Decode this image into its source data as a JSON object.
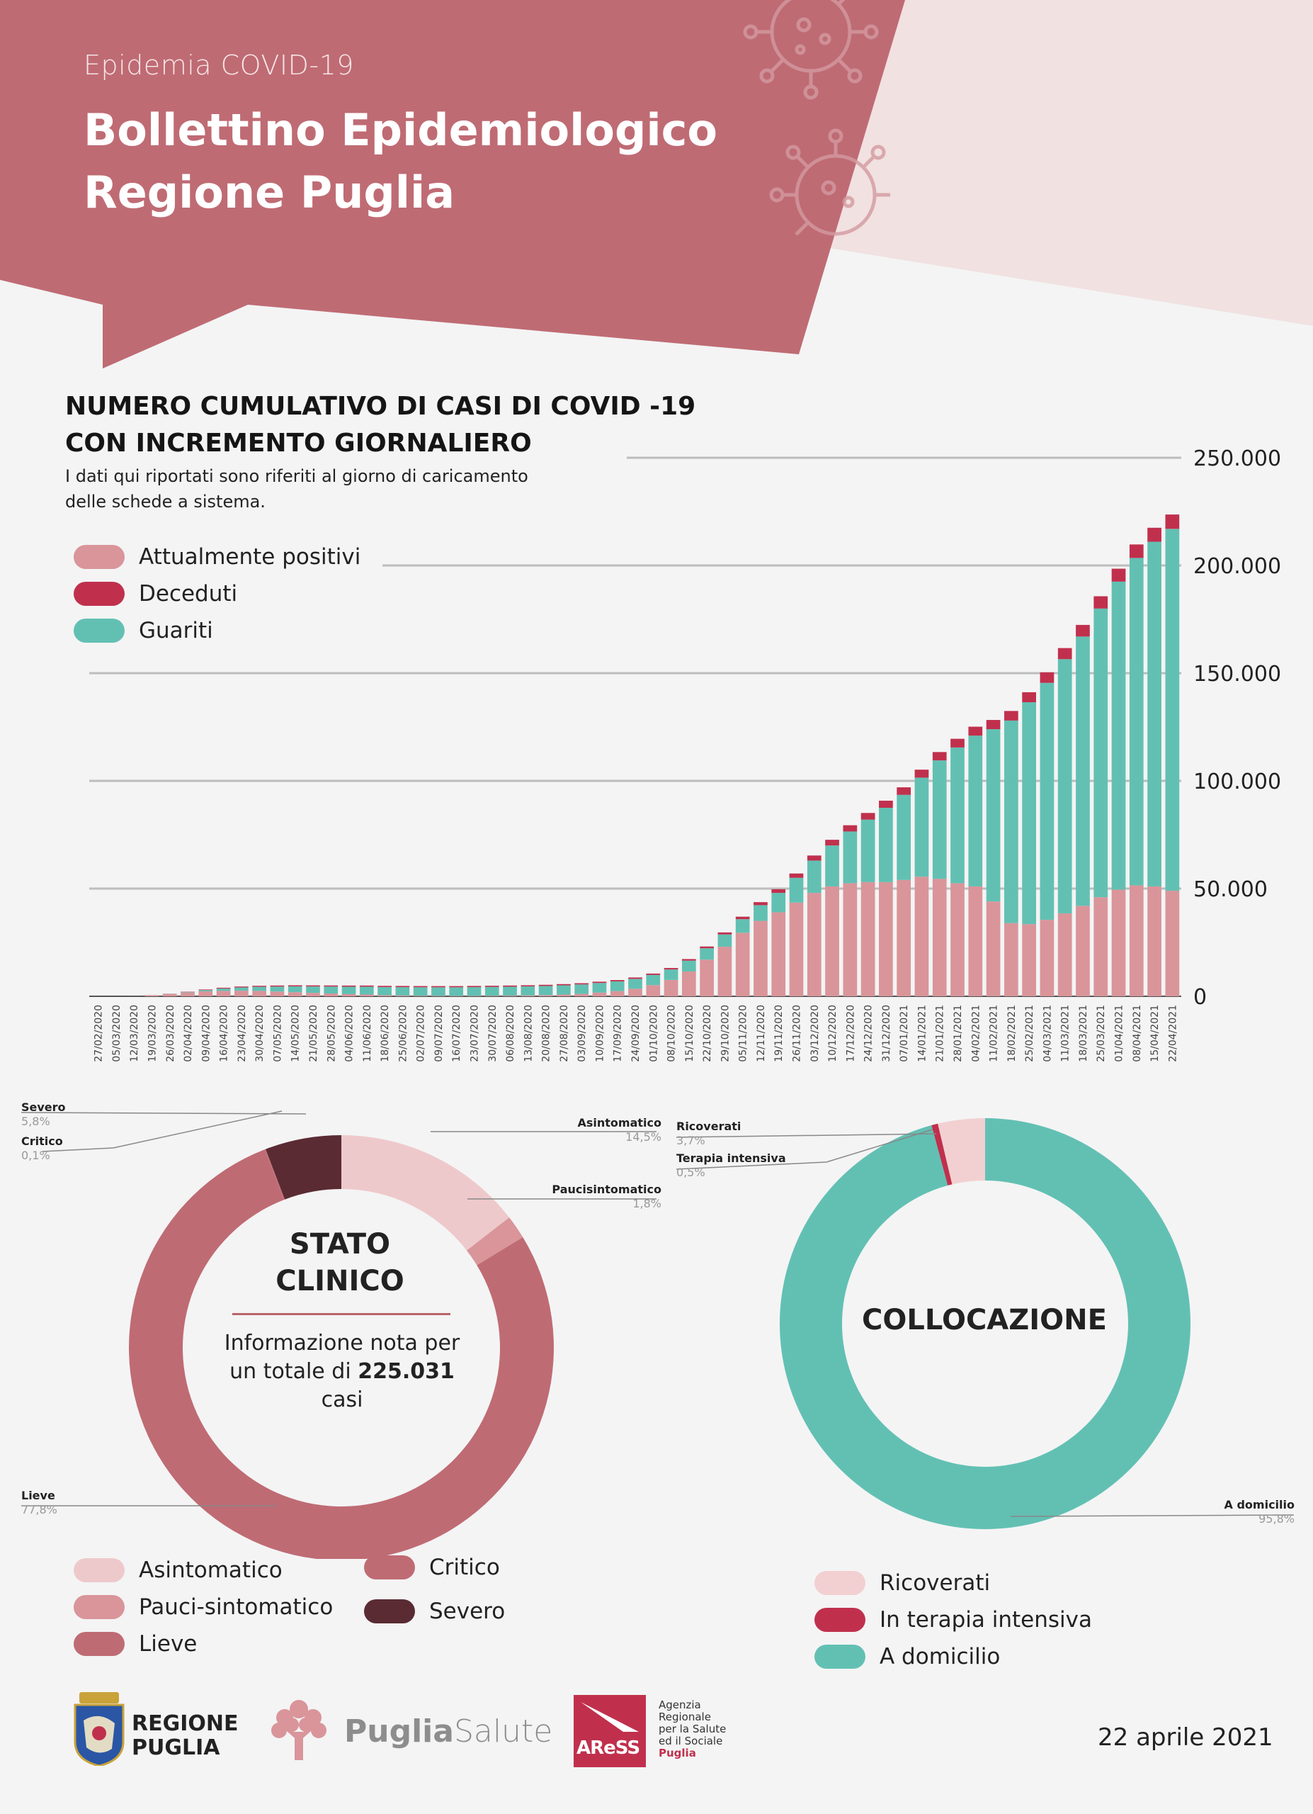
{
  "header": {
    "subtitle": "Epidemia COVID-19",
    "title_line1": "Bollettino Epidemiologico",
    "title_line2": "Regione Puglia"
  },
  "colors": {
    "header_red": "#bf6b74",
    "header_light": "#f1e1e1",
    "attualmente_positivi": "#d9959a",
    "deceduti": "#c0304d",
    "guariti": "#62c0b3",
    "asintomatico": "#eec9cb",
    "pauci": "#d9959a",
    "lieve": "#bf6b74",
    "critico": "#bf6b74",
    "severo": "#5a2b33",
    "ricoverati": "#f2d0d2",
    "terapia_intensiva": "#c0304d",
    "domicilio": "#62c0b3"
  },
  "chart_data": [
    {
      "type": "bar",
      "stacked": true,
      "title_line1": "NUMERO CUMULATIVO DI CASI DI COVID -19",
      "title_line2": "CON INCREMENTO GIORNALIERO",
      "note_line1": "I dati qui riportati sono riferiti al giorno di caricamento",
      "note_line2": "delle schede a sistema.",
      "legend": [
        "Attualmente positivi",
        "Deceduti",
        "Guariti"
      ],
      "legend_position": "top-left",
      "ylim": [
        0,
        250000
      ],
      "yticks": [
        "250.000",
        "200.000",
        "150.000",
        "100.000",
        "50.000",
        "0"
      ],
      "ytick_values": [
        250000,
        200000,
        150000,
        100000,
        50000,
        0
      ],
      "grid": true,
      "categories": [
        "27/02/2020",
        "05/03/2020",
        "12/03/2020",
        "19/03/2020",
        "26/03/2020",
        "02/04/2020",
        "09/04/2020",
        "16/04/2020",
        "23/04/2020",
        "30/04/2020",
        "07/05/2020",
        "14/05/2020",
        "21/05/2020",
        "28/05/2020",
        "04/06/2020",
        "11/06/2020",
        "18/06/2020",
        "25/06/2020",
        "02/07/2020",
        "09/07/2020",
        "16/07/2020",
        "23/07/2020",
        "30/07/2020",
        "06/08/2020",
        "13/08/2020",
        "20/08/2020",
        "27/08/2020",
        "03/09/2020",
        "10/09/2020",
        "17/09/2020",
        "24/09/2020",
        "01/10/2020",
        "08/10/2020",
        "15/10/2020",
        "22/10/2020",
        "29/10/2020",
        "05/11/2020",
        "12/11/2020",
        "19/11/2020",
        "26/11/2020",
        "03/12/2020",
        "10/12/2020",
        "17/12/2020",
        "24/12/2020",
        "31/12/2020",
        "07/01/2021",
        "14/01/2021",
        "21/01/2021",
        "28/01/2021",
        "04/02/2021",
        "11/02/2021",
        "18/02/2021",
        "25/02/2021",
        "04/03/2021",
        "11/03/2021",
        "18/03/2021",
        "25/03/2021",
        "01/04/2021",
        "08/04/2021",
        "15/04/2021",
        "22/04/2021"
      ],
      "series": [
        {
          "name": "Attualmente positivi",
          "values": [
            1,
            0,
            30,
            500,
            1100,
            1800,
            2300,
            2500,
            2600,
            2500,
            2200,
            1900,
            1600,
            1300,
            1000,
            800,
            500,
            350,
            250,
            200,
            180,
            200,
            250,
            300,
            400,
            550,
            800,
            1100,
            1700,
            2400,
            3500,
            5200,
            7600,
            11500,
            17000,
            23000,
            29500,
            35000,
            39000,
            43500,
            48000,
            51000,
            52500,
            53000,
            53000,
            54000,
            55500,
            54500,
            52500,
            51000,
            44000,
            34000,
            33500,
            35500,
            38500,
            42000,
            46000,
            49500,
            51500,
            51000,
            49000
          ]
        },
        {
          "name": "Deceduti",
          "values": [
            0,
            0,
            1,
            15,
            45,
            130,
            260,
            360,
            430,
            470,
            500,
            510,
            520,
            530,
            535,
            538,
            540,
            541,
            542,
            543,
            544,
            546,
            548,
            550,
            552,
            555,
            560,
            570,
            590,
            610,
            630,
            650,
            680,
            730,
            820,
            950,
            1150,
            1400,
            1700,
            2000,
            2350,
            2650,
            2900,
            3100,
            3300,
            3500,
            3700,
            3880,
            4030,
            4150,
            4280,
            4450,
            4650,
            4900,
            5150,
            5400,
            5700,
            6000,
            6250,
            6500,
            6650
          ]
        },
        {
          "name": "Guariti",
          "values": [
            0,
            0,
            0,
            5,
            50,
            200,
            600,
            1100,
            1500,
            1900,
            2300,
            2700,
            2950,
            3200,
            3450,
            3660,
            3800,
            3900,
            3950,
            3980,
            4000,
            4050,
            4100,
            4150,
            4180,
            4230,
            4300,
            4400,
            4480,
            4520,
            4600,
            4700,
            4850,
            5050,
            5300,
            5700,
            6300,
            7300,
            9000,
            11500,
            15000,
            19000,
            24000,
            29000,
            34500,
            39500,
            46000,
            55000,
            63000,
            70000,
            80000,
            94000,
            103000,
            110000,
            118000,
            125000,
            134000,
            143000,
            152000,
            160000,
            168000
          ]
        }
      ],
      "totals_note": "totale 22/04/2021 ≈ 225.000"
    },
    {
      "type": "pie",
      "donut": true,
      "center_title_line1": "STATO",
      "center_title_line2": "CLINICO",
      "center_text_line1": "Informazione nota per",
      "center_text_prefix": "un totale di",
      "center_total": "225.031",
      "center_text_suffix": "casi",
      "slices": [
        {
          "label": "Asintomatico",
          "pct_label": "14,5%",
          "value": 14.5
        },
        {
          "label": "Paucisintomatico",
          "pct_label": "1,8%",
          "value": 1.8
        },
        {
          "label": "Lieve",
          "pct_label": "77,8%",
          "value": 77.8
        },
        {
          "label": "Critico",
          "pct_label": "0,1%",
          "value": 0.1
        },
        {
          "label": "Severo",
          "pct_label": "5,8%",
          "value": 5.8
        }
      ],
      "legend": [
        "Asintomatico",
        "Pauci-sintomatico",
        "Lieve",
        "Critico",
        "Severo"
      ]
    },
    {
      "type": "pie",
      "donut": true,
      "center_title": "COLLOCAZIONE",
      "slices": [
        {
          "label": "A domicilio",
          "pct_label": "95,8%",
          "value": 95.8
        },
        {
          "label": "Terapia intensiva",
          "pct_label": "0,5%",
          "value": 0.5
        },
        {
          "label": "Ricoverati",
          "pct_label": "3,7%",
          "value": 3.7
        }
      ],
      "legend": [
        "Ricoverati",
        "In terapia intensiva",
        "A domicilio"
      ]
    }
  ],
  "footer": {
    "regione_line1": "REGIONE",
    "regione_line2": "PUGLIA",
    "puglia": "Puglia",
    "salute": "Salute",
    "aress": "AReSS",
    "aress_desc": [
      "Agenzia",
      "Regionale",
      "per la Salute",
      "ed il Sociale"
    ],
    "aress_puglia": "Puglia",
    "date": "22 aprile 2021"
  }
}
